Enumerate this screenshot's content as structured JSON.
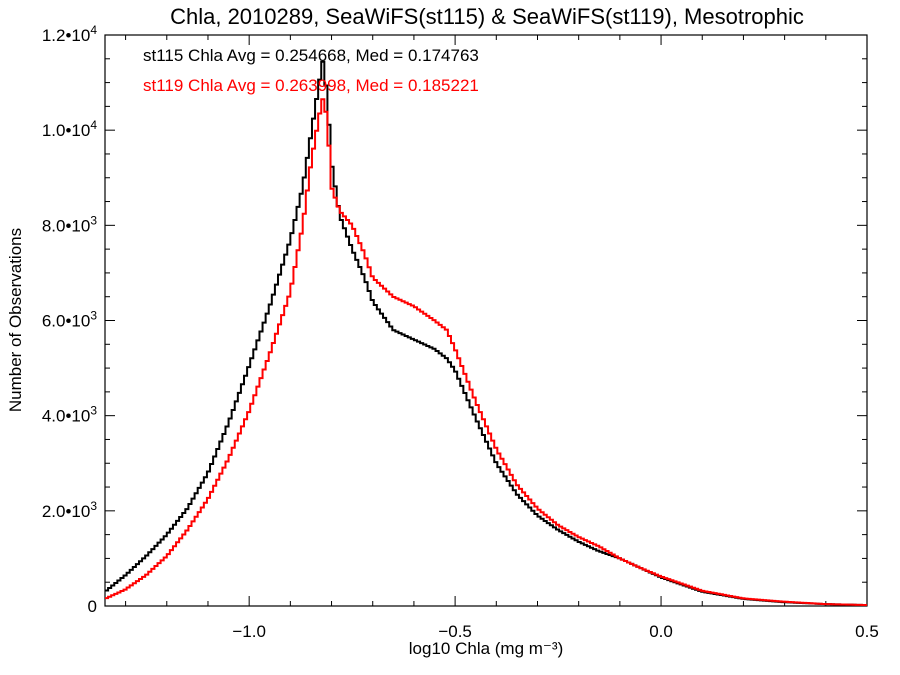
{
  "chart_data": {
    "type": "line",
    "step": true,
    "title": "Chla, 2010289, SeaWiFS(st115) & SeaWiFS(st119), Mesotrophic",
    "xlabel": "log10 Chla (mg m⁻³)",
    "ylabel": "Number of Observations",
    "xlim": [
      -1.35,
      0.5
    ],
    "ylim": [
      0,
      12000
    ],
    "xticks": [
      -1.0,
      -0.5,
      0.0,
      0.5
    ],
    "xtick_labels": [
      "−1.0",
      "−0.5",
      "0.0",
      "0.5"
    ],
    "ytick_labels": [
      {
        "value": 0,
        "mant": "0",
        "exp": ""
      },
      {
        "value": 2000,
        "mant": "2.0•10",
        "exp": "3"
      },
      {
        "value": 4000,
        "mant": "4.0•10",
        "exp": "3"
      },
      {
        "value": 6000,
        "mant": "6.0•10",
        "exp": "3"
      },
      {
        "value": 8000,
        "mant": "8.0•10",
        "exp": "3"
      },
      {
        "value": 10000,
        "mant": "1.0•10",
        "exp": "4"
      },
      {
        "value": 12000,
        "mant": "1.2•10",
        "exp": "4"
      }
    ],
    "annotations": [
      {
        "text": "st115 Chla Avg = 0.254668, Med = 0.174763",
        "color": "#000000"
      },
      {
        "text": "st119 Chla Avg = 0.263998, Med = 0.185221",
        "color": "#ff0000"
      }
    ],
    "series": [
      {
        "name": "st115",
        "color": "#000000",
        "x": [
          -1.35,
          -1.3,
          -1.25,
          -1.2,
          -1.15,
          -1.1,
          -1.05,
          -1.0,
          -0.95,
          -0.9,
          -0.87,
          -0.85,
          -0.83,
          -0.82,
          -0.81,
          -0.8,
          -0.78,
          -0.75,
          -0.72,
          -0.7,
          -0.65,
          -0.6,
          -0.55,
          -0.52,
          -0.5,
          -0.45,
          -0.4,
          -0.35,
          -0.3,
          -0.25,
          -0.2,
          -0.15,
          -0.1,
          -0.05,
          0.0,
          0.05,
          0.1,
          0.2,
          0.3,
          0.4,
          0.5
        ],
        "y": [
          300,
          650,
          1050,
          1500,
          2050,
          2800,
          3850,
          5050,
          6300,
          7700,
          8800,
          9900,
          11000,
          11500,
          10600,
          9300,
          8200,
          7500,
          6900,
          6400,
          5800,
          5600,
          5400,
          5200,
          4950,
          3950,
          3000,
          2350,
          1900,
          1600,
          1350,
          1150,
          1000,
          800,
          600,
          450,
          300,
          150,
          80,
          40,
          20
        ]
      },
      {
        "name": "st119",
        "color": "#ff0000",
        "x": [
          -1.35,
          -1.3,
          -1.25,
          -1.2,
          -1.15,
          -1.1,
          -1.05,
          -1.0,
          -0.95,
          -0.9,
          -0.87,
          -0.85,
          -0.83,
          -0.82,
          -0.81,
          -0.8,
          -0.78,
          -0.75,
          -0.72,
          -0.7,
          -0.65,
          -0.6,
          -0.55,
          -0.52,
          -0.5,
          -0.45,
          -0.4,
          -0.35,
          -0.3,
          -0.25,
          -0.2,
          -0.15,
          -0.1,
          -0.05,
          0.0,
          0.05,
          0.1,
          0.2,
          0.3,
          0.4,
          0.5
        ],
        "y": [
          150,
          350,
          650,
          1050,
          1600,
          2250,
          3100,
          4100,
          5300,
          6600,
          8000,
          9300,
          10300,
          10700,
          10200,
          8800,
          8300,
          8000,
          7400,
          6900,
          6500,
          6300,
          6000,
          5800,
          5400,
          4300,
          3300,
          2550,
          2050,
          1700,
          1450,
          1250,
          1000,
          800,
          620,
          470,
          320,
          160,
          90,
          40,
          20
        ]
      }
    ]
  }
}
